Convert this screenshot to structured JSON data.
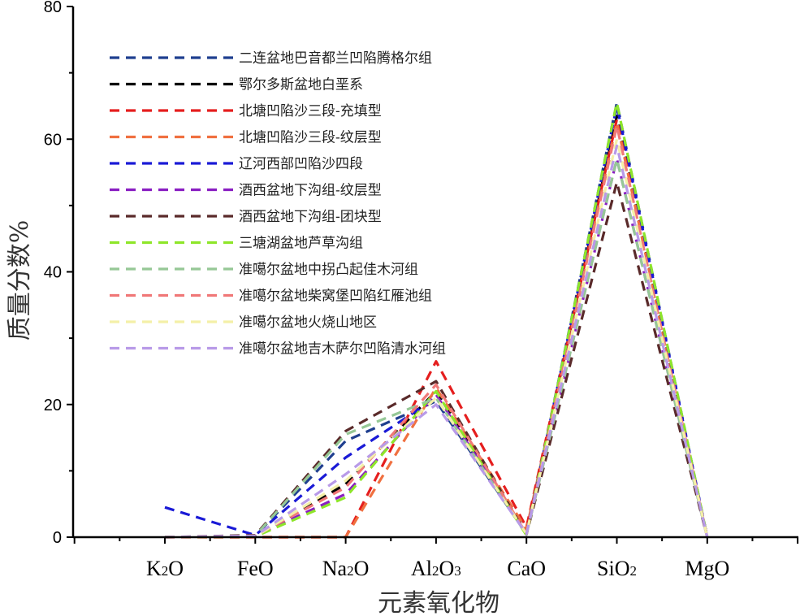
{
  "chart_data": {
    "type": "line",
    "categories": [
      "K2O",
      "FeO",
      "Na2O",
      "Al2O3",
      "CaO",
      "SiO2",
      "MgO"
    ],
    "category_labels": [
      {
        "base": "K",
        "sub": "2",
        "tail": "O",
        "sub2": ""
      },
      {
        "base": "FeO",
        "sub": "",
        "tail": "",
        "sub2": ""
      },
      {
        "base": "Na",
        "sub": "2",
        "tail": "O",
        "sub2": ""
      },
      {
        "base": "Al",
        "sub": "2",
        "tail": "O",
        "sub2": "3"
      },
      {
        "base": "CaO",
        "sub": "",
        "tail": "",
        "sub2": ""
      },
      {
        "base": "SiO",
        "sub": "2",
        "tail": "",
        "sub2": ""
      },
      {
        "base": "MgO",
        "sub": "",
        "tail": "",
        "sub2": ""
      }
    ],
    "xlabel": "元素氧化物",
    "ylabel": "质量分数%",
    "ylim": [
      0,
      80
    ],
    "yticks": [
      0,
      20,
      40,
      60,
      80
    ],
    "grid": false,
    "legend_position": "top-left",
    "series": [
      {
        "name": "二连盆地巴音都兰凹陷腾格尔组",
        "color": "#1f3f8f",
        "values": [
          0,
          0.2,
          14.5,
          20.5,
          0.5,
          65.5,
          0
        ]
      },
      {
        "name": "鄂尔多斯盆地白垩系",
        "color": "#000000",
        "values": [
          0,
          0.1,
          8.0,
          22.0,
          0.8,
          63.5,
          0
        ]
      },
      {
        "name": "北塘凹陷沙三段-充填型",
        "color": "#e51e1e",
        "values": [
          0,
          0,
          0,
          26.5,
          1.5,
          63.0,
          0
        ]
      },
      {
        "name": "北塘凹陷沙三段-纹层型",
        "color": "#f07040",
        "values": [
          0,
          0,
          0,
          22.5,
          1.2,
          62.5,
          0
        ]
      },
      {
        "name": "辽河西部凹陷沙四段",
        "color": "#1a1ad6",
        "values": [
          4.5,
          0.3,
          12.0,
          21.0,
          0.5,
          65.0,
          0
        ]
      },
      {
        "name": "酒西盆地下沟组-纹层型",
        "color": "#8a1fc2",
        "values": [
          0,
          0.2,
          6.5,
          21.5,
          0.5,
          57.0,
          0
        ]
      },
      {
        "name": "酒西盆地下沟组-团块型",
        "color": "#5a2a2a",
        "values": [
          0,
          0.3,
          16.0,
          23.5,
          0.4,
          53.5,
          0
        ]
      },
      {
        "name": "三塘湖盆地芦草沟组",
        "color": "#8ee62a",
        "values": [
          0,
          0.1,
          6.0,
          22.0,
          0.3,
          65.5,
          0
        ]
      },
      {
        "name": "准噶尔盆地中拐凸起佳木河组",
        "color": "#96c896",
        "values": [
          0,
          0.2,
          15.5,
          21.0,
          0.4,
          57.0,
          0
        ]
      },
      {
        "name": "准噶尔盆地柴窝堡凹陷红雁池组",
        "color": "#f07878",
        "values": [
          0,
          0.2,
          7.5,
          23.0,
          0.5,
          62.0,
          0
        ]
      },
      {
        "name": "准噶尔盆地火烧山地区",
        "color": "#f4f0a8",
        "values": [
          0,
          0.1,
          8.5,
          21.0,
          0.5,
          60.0,
          0
        ]
      },
      {
        "name": "准噶尔盆地吉木萨尔凹陷清水河组",
        "color": "#b89ae8",
        "values": [
          0,
          0.2,
          9.5,
          20.0,
          0.5,
          59.0,
          0
        ]
      }
    ]
  }
}
